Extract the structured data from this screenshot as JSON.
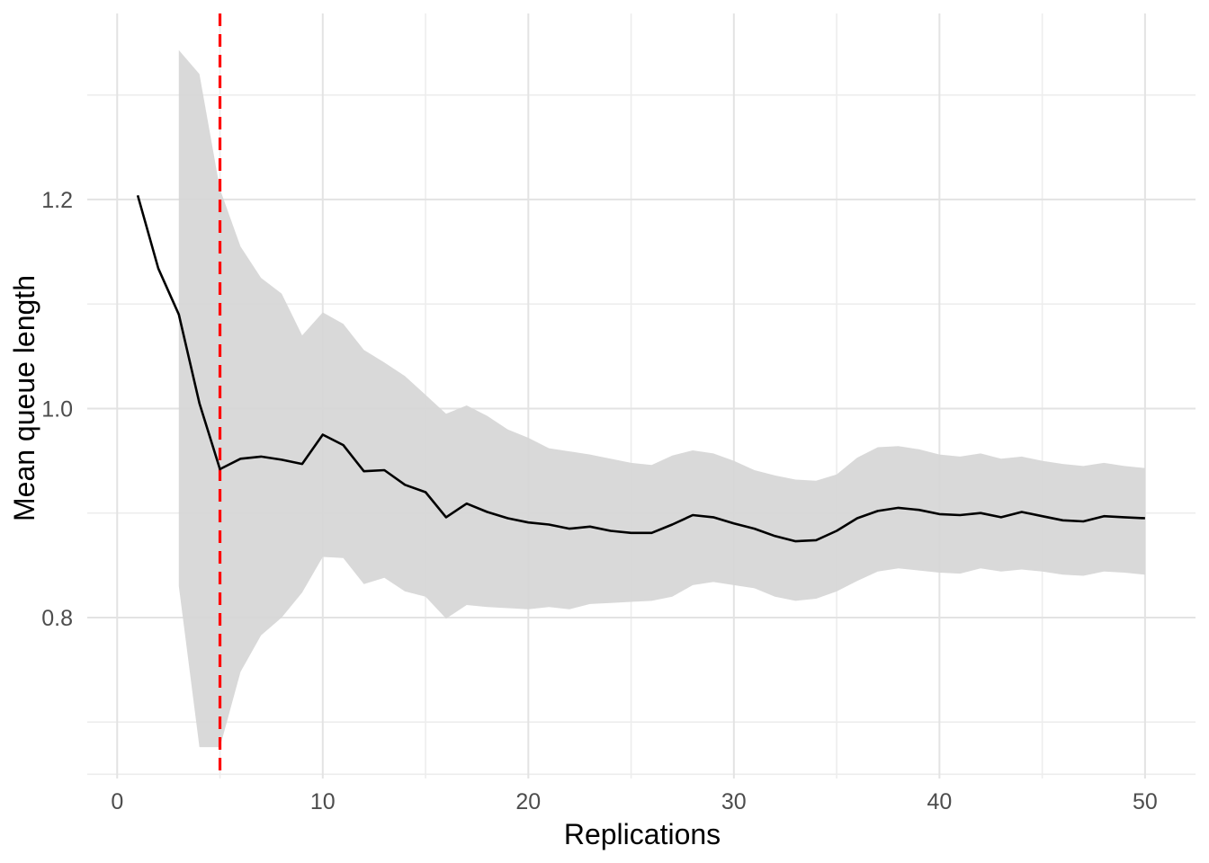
{
  "page": {
    "background": "#ffffff"
  },
  "chart_data": {
    "type": "line",
    "title": "",
    "xlabel": "Replications",
    "ylabel": "Mean queue length",
    "legend": "none",
    "grid": "on",
    "xlim": [
      -1.456,
      52.456
    ],
    "ylim": [
      0.646,
      1.378
    ],
    "x_ticks": [
      0,
      10,
      20,
      30,
      40,
      50
    ],
    "x_minor_ticks": [
      5,
      15,
      25,
      35,
      45
    ],
    "y_ticks": [
      "0.8",
      "1.0",
      "1.2"
    ],
    "y_tick_values": [
      0.8,
      1.0,
      1.2
    ],
    "y_minor_values": [
      0.65,
      0.7,
      0.9,
      1.1,
      1.3
    ],
    "vline": {
      "x": 5,
      "color": "#FF0000",
      "linetype": "dashed"
    },
    "x": [
      1,
      2,
      3,
      4,
      5,
      6,
      7,
      8,
      9,
      10,
      11,
      12,
      13,
      14,
      15,
      16,
      17,
      18,
      19,
      20,
      21,
      22,
      23,
      24,
      25,
      26,
      27,
      28,
      29,
      30,
      31,
      32,
      33,
      34,
      35,
      36,
      37,
      38,
      39,
      40,
      41,
      42,
      43,
      44,
      45,
      46,
      47,
      48,
      49,
      50
    ],
    "series": [
      {
        "name": "mean",
        "values": [
          1.204,
          1.134,
          1.09,
          1.005,
          0.942,
          0.952,
          0.954,
          0.951,
          0.947,
          0.975,
          0.965,
          0.94,
          0.941,
          0.927,
          0.92,
          0.896,
          0.909,
          0.901,
          0.895,
          0.891,
          0.889,
          0.885,
          0.887,
          0.883,
          0.881,
          0.881,
          0.889,
          0.898,
          0.896,
          0.89,
          0.885,
          0.878,
          0.873,
          0.874,
          0.883,
          0.895,
          0.902,
          0.905,
          0.903,
          0.899,
          0.898,
          0.9,
          0.896,
          0.901,
          0.897,
          0.893,
          0.892,
          0.897,
          0.896,
          0.895
        ]
      },
      {
        "name": "ci_upper",
        "values": [
          null,
          null,
          1.343,
          1.32,
          1.21,
          1.155,
          1.125,
          1.11,
          1.07,
          1.092,
          1.081,
          1.056,
          1.044,
          1.031,
          1.013,
          0.995,
          1.003,
          0.993,
          0.98,
          0.972,
          0.962,
          0.959,
          0.956,
          0.952,
          0.948,
          0.946,
          0.955,
          0.96,
          0.957,
          0.95,
          0.941,
          0.936,
          0.932,
          0.931,
          0.937,
          0.953,
          0.963,
          0.964,
          0.961,
          0.956,
          0.954,
          0.957,
          0.952,
          0.954,
          0.95,
          0.947,
          0.945,
          0.948,
          0.945,
          0.943
        ]
      },
      {
        "name": "ci_lower",
        "values": [
          null,
          null,
          0.83,
          0.676,
          0.676,
          0.748,
          0.783,
          0.8,
          0.824,
          0.858,
          0.857,
          0.832,
          0.838,
          0.825,
          0.82,
          0.799,
          0.812,
          0.81,
          0.809,
          0.808,
          0.81,
          0.808,
          0.813,
          0.814,
          0.815,
          0.816,
          0.82,
          0.831,
          0.834,
          0.831,
          0.828,
          0.82,
          0.816,
          0.818,
          0.825,
          0.835,
          0.844,
          0.847,
          0.845,
          0.843,
          0.842,
          0.847,
          0.844,
          0.846,
          0.844,
          0.841,
          0.84,
          0.844,
          0.843,
          0.841
        ]
      }
    ],
    "colors": {
      "mean_line": "#000000",
      "ribbon_fill": "#D6D6D6",
      "vline": "#FF0000",
      "grid_major": "#E3E3E3",
      "grid_minor": "#EDEDED",
      "tick_text": "#4D4D4D",
      "axis_title_text": "#000000",
      "background": "#FFFFFF"
    }
  }
}
